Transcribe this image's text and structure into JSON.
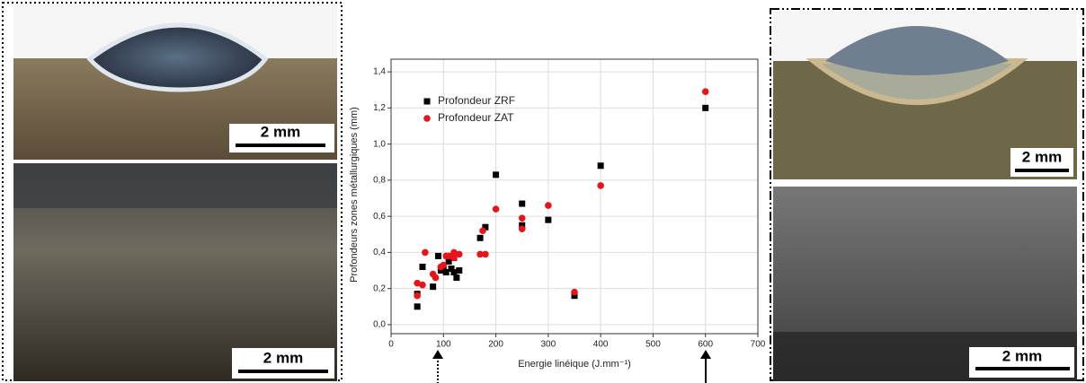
{
  "chart_data": {
    "type": "scatter",
    "xlabel": "Energie linéique (J.mm⁻¹)",
    "ylabel": "Profondeurs zones métallurgiques (mm)",
    "xlim": [
      0,
      700
    ],
    "ylim": [
      -0.05,
      1.47
    ],
    "xticks": [
      0,
      100,
      200,
      300,
      400,
      500,
      600,
      700
    ],
    "yticks": [
      {
        "value": 0,
        "label": "0,0"
      },
      {
        "value": 0.2,
        "label": "0,2"
      },
      {
        "value": 0.4,
        "label": "0,4"
      },
      {
        "value": 0.6,
        "label": "0,6"
      },
      {
        "value": 0.8,
        "label": "0,8"
      },
      {
        "value": 1.0,
        "label": "1,0"
      },
      {
        "value": 1.2,
        "label": "1,2"
      },
      {
        "value": 1.4,
        "label": "1,4"
      }
    ],
    "grid": true,
    "legend": "upper left",
    "series": [
      {
        "name": "Profondeur ZRF",
        "color": "#000000",
        "marker": "square",
        "x": [
          50,
          50,
          60,
          80,
          90,
          95,
          100,
          105,
          110,
          115,
          120,
          125,
          130,
          120,
          170,
          180,
          200,
          250,
          250,
          300,
          350,
          400,
          600
        ],
        "values": [
          0.1,
          0.17,
          0.32,
          0.21,
          0.38,
          0.3,
          0.31,
          0.29,
          0.35,
          0.31,
          0.29,
          0.26,
          0.3,
          0.37,
          0.48,
          0.54,
          0.83,
          0.67,
          0.55,
          0.58,
          0.16,
          0.88,
          1.2
        ]
      },
      {
        "name": "Profondeur ZAT",
        "color": "#e8141c",
        "marker": "circle",
        "x": [
          50,
          50,
          60,
          65,
          80,
          85,
          95,
          100,
          105,
          110,
          120,
          120,
          130,
          170,
          175,
          180,
          200,
          250,
          250,
          300,
          350,
          400,
          600
        ],
        "values": [
          0.23,
          0.16,
          0.22,
          0.4,
          0.28,
          0.26,
          0.32,
          0.33,
          0.38,
          0.38,
          0.4,
          0.37,
          0.39,
          0.39,
          0.52,
          0.39,
          0.64,
          0.59,
          0.53,
          0.66,
          0.18,
          0.77,
          1.29
        ]
      }
    ]
  },
  "panels": [
    {
      "scale_bar": "2 mm"
    },
    {
      "scale_bar": "2 mm"
    },
    {
      "scale_bar": "2 mm"
    },
    {
      "scale_bar": "2 mm"
    }
  ]
}
